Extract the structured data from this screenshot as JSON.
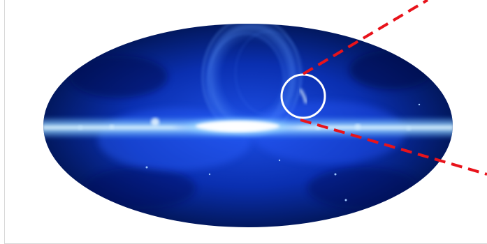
{
  "image": {
    "subject": "all-sky map",
    "colors": {
      "background": "#ffffff",
      "sky_deep": "#00124a",
      "sky_mid": "#0a2fb0",
      "sky_bright": "#2f6bff",
      "plane_core": "#ffffff",
      "plane_glow": "#8fd0ff",
      "marker_circle": "#ffffff",
      "zoom_lines": "#e8131b"
    },
    "icons": {
      "marker": "circle-marker-icon",
      "zoom": "dashed-zoom-lines-icon"
    }
  }
}
